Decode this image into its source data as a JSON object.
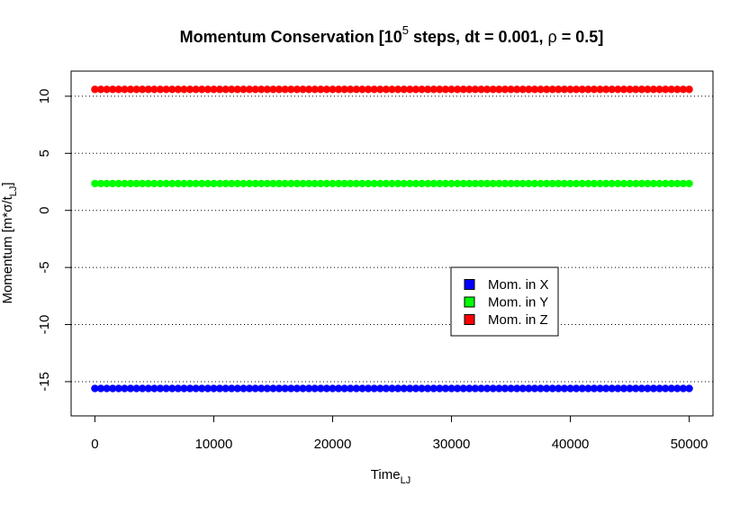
{
  "chart_data": {
    "type": "scatter",
    "title": {
      "prefix": "Momentum Conservation [10",
      "superscript": "5",
      "suffix": " steps, dt = 0.001, ",
      "rho": "ρ",
      "rho_suffix": " = 0.5]"
    },
    "xlabel": {
      "main": "Time",
      "subscript": "LJ"
    },
    "ylabel": {
      "main": "Momentum [m*σ/t",
      "subscript": "LJ",
      "close": "]"
    },
    "xlim": [
      -2000,
      52000
    ],
    "ylim": [
      -18,
      12.2
    ],
    "x_ticks": [
      0,
      10000,
      20000,
      30000,
      40000,
      50000
    ],
    "y_ticks": [
      -15,
      -10,
      -5,
      0,
      5,
      10
    ],
    "y_grid": true,
    "x": {
      "from": 0,
      "to": 50000,
      "count": 101
    },
    "series": [
      {
        "name": "Mom. in X",
        "color": "#0000ff",
        "value": -15.6
      },
      {
        "name": "Mom. in Y",
        "color": "#00ff00",
        "value": 2.35
      },
      {
        "name": "Mom. in Z",
        "color": "#ff0000",
        "value": 10.6
      }
    ],
    "legend": {
      "position": "center-right"
    }
  }
}
